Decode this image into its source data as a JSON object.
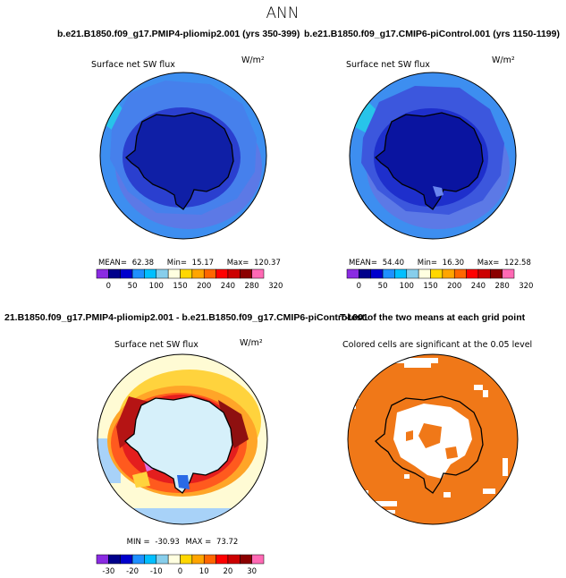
{
  "page": {
    "title": "ANN"
  },
  "chart_data": [
    {
      "type": "heatmap",
      "projection": "south-polar-stereographic",
      "case_title": "b.e21.B1850.f09_g17.PMIP4-pliomip2.001 (yrs 350-399)",
      "field": "Surface net SW flux",
      "units": "W/m²",
      "stats": {
        "mean_label": "MEAN=",
        "mean": "62.38",
        "min_label": "Min=",
        "min": "15.17",
        "max_label": "Max=",
        "max": "120.37"
      },
      "colorbar": {
        "colors": [
          "#8a2be2",
          "#00008b",
          "#0000cd",
          "#1e90ff",
          "#00bfff",
          "#87ceeb",
          "#ffffe0",
          "#ffd700",
          "#ffa500",
          "#ff6600",
          "#ff0000",
          "#cc0000",
          "#8b0000",
          "#ff69b4"
        ],
        "tick_labels": [
          "0",
          "50",
          "100",
          "150",
          "200",
          "240",
          "280",
          "320"
        ]
      }
    },
    {
      "type": "heatmap",
      "projection": "south-polar-stereographic",
      "case_title": "b.e21.B1850.f09_g17.CMIP6-piControl.001 (yrs 1150-1199)",
      "field": "Surface net SW flux",
      "units": "W/m²",
      "stats": {
        "mean_label": "MEAN=",
        "mean": "54.40",
        "min_label": "Min=",
        "min": "16.30",
        "max_label": "Max=",
        "max": "122.58"
      },
      "colorbar": {
        "colors": [
          "#8a2be2",
          "#00008b",
          "#0000cd",
          "#1e90ff",
          "#00bfff",
          "#87ceeb",
          "#ffffe0",
          "#ffd700",
          "#ffa500",
          "#ff6600",
          "#ff0000",
          "#cc0000",
          "#8b0000",
          "#ff69b4"
        ],
        "tick_labels": [
          "0",
          "50",
          "100",
          "150",
          "200",
          "240",
          "280",
          "320"
        ]
      }
    },
    {
      "type": "heatmap",
      "projection": "south-polar-stereographic",
      "case_title": "21.B1850.f09_g17.PMIP4-pliomip2.001 - b.e21.B1850.f09_g17.CMIP6-piControl.001",
      "field": "Surface net SW flux",
      "units": "W/m²",
      "stats": {
        "min_label": "MIN =",
        "min": "-30.93",
        "max_label": "MAX =",
        "max": "73.72"
      },
      "colorbar": {
        "colors": [
          "#8a2be2",
          "#00008b",
          "#0000cd",
          "#1e90ff",
          "#00bfff",
          "#87ceeb",
          "#ffffe0",
          "#ffd700",
          "#ffa500",
          "#ff6600",
          "#ff0000",
          "#cc0000",
          "#8b0000",
          "#ff69b4"
        ],
        "tick_labels": [
          "-30",
          "-20",
          "-10",
          "0",
          "10",
          "20",
          "30"
        ]
      }
    },
    {
      "type": "heatmap",
      "projection": "south-polar-stereographic",
      "case_title": "T-test of the two means at each grid point",
      "subtitle": "Colored cells are significant at the 0.05 level",
      "significance_color": "#f07818"
    }
  ]
}
